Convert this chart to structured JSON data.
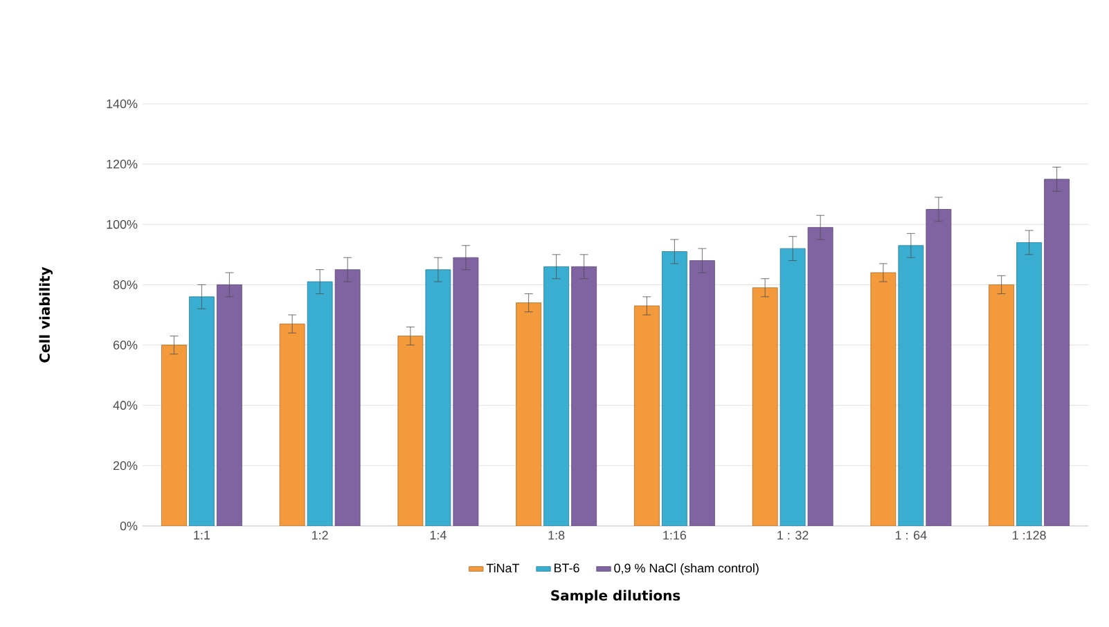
{
  "chart_data": {
    "type": "bar",
    "xlabel": "Sample dilutions",
    "ylabel": "Cell viability",
    "categories": [
      "1:1",
      "1:2",
      "1:4",
      "1:8",
      "1:16",
      "1 : 32",
      "1 : 64",
      "1 :128"
    ],
    "series": [
      {
        "name": "TiNaT",
        "color": "#f39a3c",
        "values": [
          60,
          67,
          63,
          74,
          73,
          79,
          84,
          80
        ],
        "errors": [
          3,
          3,
          3,
          3,
          3,
          3,
          3,
          3
        ]
      },
      {
        "name": "BT-6",
        "color": "#3aaed0",
        "values": [
          76,
          81,
          85,
          86,
          91,
          92,
          93,
          94
        ],
        "errors": [
          4,
          4,
          4,
          4,
          4,
          4,
          4,
          4
        ]
      },
      {
        "name": "0,9 % NaCl (sham control)",
        "color": "#8064a2",
        "values": [
          80,
          85,
          89,
          86,
          88,
          99,
          105,
          115
        ],
        "errors": [
          4,
          4,
          4,
          4,
          4,
          4,
          4,
          4
        ]
      }
    ],
    "ylim": [
      0,
      140
    ],
    "yticks": [
      {
        "value": 0,
        "label": "0%"
      },
      {
        "value": 20,
        "label": "20%"
      },
      {
        "value": 40,
        "label": "40%"
      },
      {
        "value": 60,
        "label": "60%"
      },
      {
        "value": 80,
        "label": "80%"
      },
      {
        "value": 100,
        "label": "100%"
      },
      {
        "value": 120,
        "label": "120%"
      },
      {
        "value": 140,
        "label": "140%"
      }
    ],
    "grid": "y",
    "legend": "bottom"
  }
}
